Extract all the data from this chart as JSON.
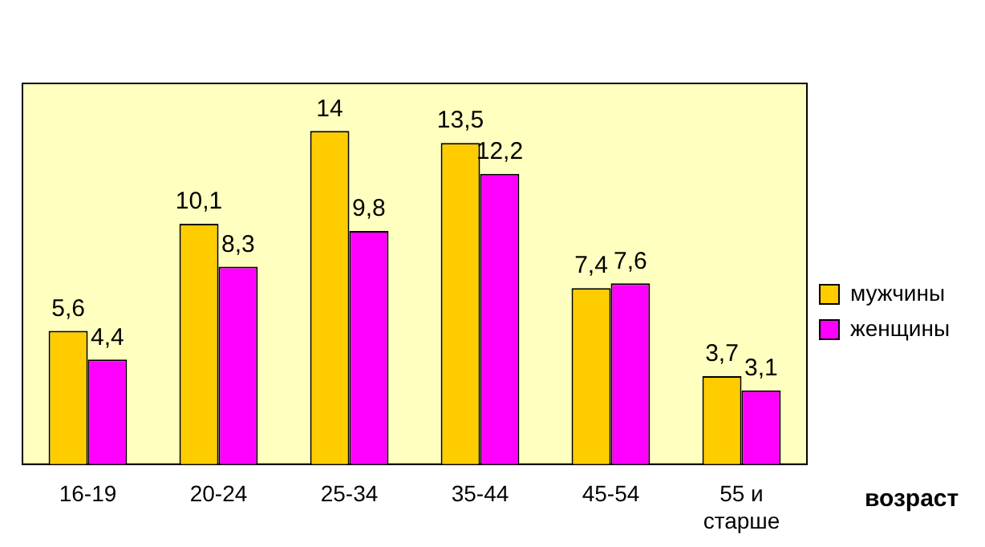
{
  "chart_data": {
    "type": "bar",
    "xlabel": "возраст",
    "categories": [
      "16-19",
      "20-24",
      "25-34",
      "35-44",
      "45-54",
      "55 и старше"
    ],
    "series": [
      {
        "name": "мужчины",
        "color": "#ffcc00",
        "values": [
          5.6,
          10.1,
          14,
          13.5,
          7.4,
          3.7
        ],
        "value_labels": [
          "5,6",
          "10,1",
          "14",
          "13,5",
          "7,4",
          "3,7"
        ]
      },
      {
        "name": "женщины",
        "color": "#ff00ff",
        "values": [
          4.4,
          8.3,
          9.8,
          12.2,
          7.6,
          3.1
        ],
        "value_labels": [
          "4,4",
          "8,3",
          "9,8",
          "12,2",
          "7,6",
          "3,1"
        ]
      }
    ],
    "legend": "right",
    "grid": false
  }
}
